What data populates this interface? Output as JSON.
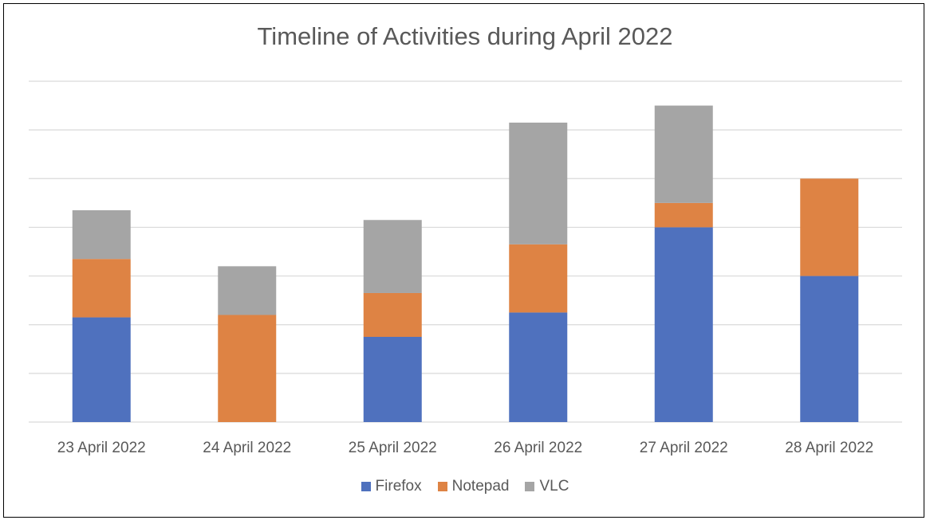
{
  "chart_data": {
    "type": "bar",
    "stacked": true,
    "title": "Timeline of Activities during April 2022",
    "xlabel": "",
    "ylabel": "",
    "ylim": [
      0,
      7
    ],
    "y_tick_step": 1,
    "y_tick_labels_visible": false,
    "grid": true,
    "legend_position": "bottom",
    "categories": [
      "23 April 2022",
      "24 April 2022",
      "25 April 2022",
      "26 April 2022",
      "27 April 2022",
      "28 April 2022"
    ],
    "series": [
      {
        "name": "Firefox",
        "color": "#4F71BE",
        "values": [
          2.15,
          0,
          1.75,
          2.25,
          4,
          3
        ]
      },
      {
        "name": "Notepad",
        "color": "#DE8344",
        "values": [
          1.2,
          2.2,
          0.9,
          1.4,
          0.5,
          2
        ]
      },
      {
        "name": "VLC",
        "color": "#A5A5A5",
        "values": [
          1.0,
          1.0,
          1.5,
          2.5,
          2.0,
          0
        ]
      }
    ]
  },
  "colors": {
    "frame_border": "#000000",
    "gridline": "#D9D9D9",
    "text": "#595959"
  }
}
